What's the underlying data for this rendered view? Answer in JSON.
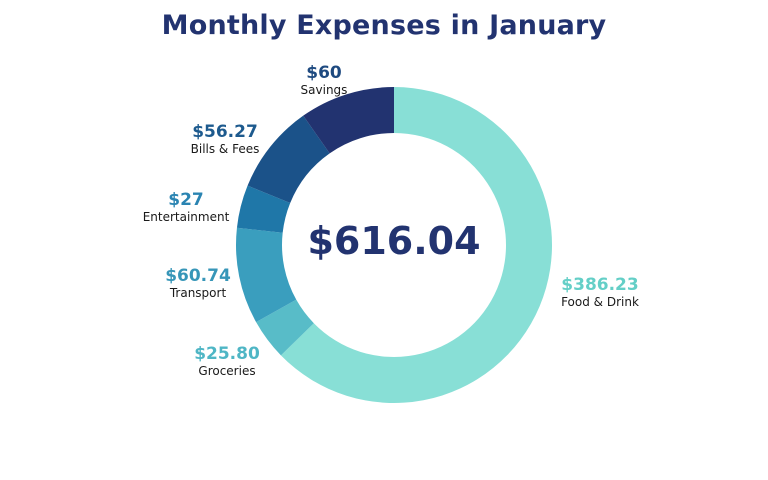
{
  "chart_data": {
    "type": "pie",
    "title": "Monthly Expenses in January",
    "center_label": "$616.04",
    "slices": [
      {
        "label": "Food & Drink",
        "value_label": "$386.23",
        "value": 386.23,
        "color": "#88dfd6",
        "label_color": "#64cfc7"
      },
      {
        "label": "Groceries",
        "value_label": "$25.80",
        "value": 25.8,
        "color": "#58bcc8",
        "label_color": "#4fb6c5"
      },
      {
        "label": "Transport",
        "value_label": "$60.74",
        "value": 60.74,
        "color": "#3a9ebe",
        "label_color": "#3796b8"
      },
      {
        "label": "Entertainment",
        "value_label": "$27",
        "value": 27,
        "color": "#1f77a8",
        "label_color": "#2a84b2"
      },
      {
        "label": "Bills & Fees",
        "value_label": "$56.27",
        "value": 56.27,
        "color": "#1b5289",
        "label_color": "#1d5a8e"
      },
      {
        "label": "Savings",
        "value_label": "$60",
        "value": 60,
        "color": "#223370",
        "label_color": "#1e4a80"
      }
    ]
  }
}
